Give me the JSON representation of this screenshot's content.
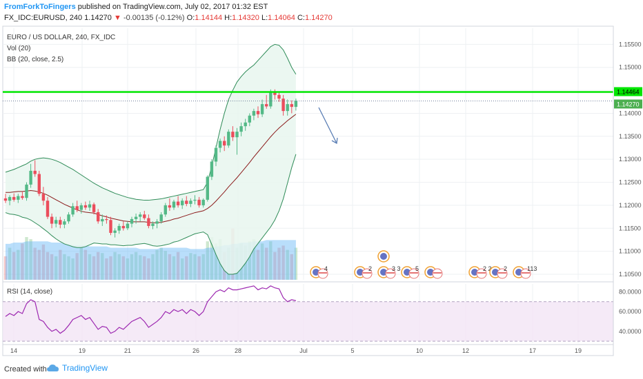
{
  "header": {
    "author": "FromForkToFingers",
    "published": "published on TradingView.com, July 02, 2017 01:32 EST",
    "symbol": "FX_IDC:EURUSD, 240",
    "last": "1.14270",
    "change": "-0.00135 (-0.12%)",
    "o_label": "O:",
    "o_value": "1.14144",
    "h_label": "H:",
    "h_value": "1.14320",
    "l_label": "L:",
    "l_value": "1.14064",
    "c_label": "C:",
    "c_value": "1.14270"
  },
  "chart_data": {
    "type": "candlestick",
    "legend": [
      "EURO / US DOLLAR, 240, FX_IDC",
      "Vol (20)",
      "BB (20, close, 2.5)"
    ],
    "price_axis": {
      "ylim": [
        1.1038,
        1.1585
      ],
      "ticks": [
        "1.15500",
        "1.15000",
        "1.14500",
        "1.14000",
        "1.13500",
        "1.13000",
        "1.12500",
        "1.12000",
        "1.11500",
        "1.11000",
        "1.10500"
      ],
      "tick_values": [
        1.155,
        1.15,
        1.145,
        1.14,
        1.135,
        1.13,
        1.125,
        1.12,
        1.115,
        1.11,
        1.105
      ],
      "level_line": 1.14464,
      "level_label": "1.14464",
      "last_price": 1.1427,
      "last_label": "1.14270"
    },
    "x_axis": {
      "ticks": [
        "14",
        "19",
        "21",
        "26",
        "28",
        "Jul",
        "5",
        "10",
        "12",
        "17",
        "19"
      ]
    },
    "ohlc": [
      [
        1.1215,
        1.1225,
        1.1205,
        1.121
      ],
      [
        1.121,
        1.1222,
        1.12,
        1.1218
      ],
      [
        1.1218,
        1.1226,
        1.1208,
        1.1212
      ],
      [
        1.1212,
        1.1225,
        1.1205,
        1.122
      ],
      [
        1.122,
        1.123,
        1.1212,
        1.1216
      ],
      [
        1.1216,
        1.125,
        1.121,
        1.1245
      ],
      [
        1.1245,
        1.129,
        1.1238,
        1.1275
      ],
      [
        1.1275,
        1.1298,
        1.1262,
        1.1268
      ],
      [
        1.1268,
        1.1275,
        1.122,
        1.1225
      ],
      [
        1.1225,
        1.124,
        1.12,
        1.121
      ],
      [
        1.121,
        1.1218,
        1.117,
        1.1175
      ],
      [
        1.1175,
        1.1182,
        1.115,
        1.116
      ],
      [
        1.116,
        1.1175,
        1.1152,
        1.1168
      ],
      [
        1.1168,
        1.1175,
        1.115,
        1.1158
      ],
      [
        1.1158,
        1.117,
        1.115,
        1.1165
      ],
      [
        1.1165,
        1.1185,
        1.116,
        1.118
      ],
      [
        1.118,
        1.1205,
        1.1175,
        1.1198
      ],
      [
        1.1198,
        1.121,
        1.1185,
        1.119
      ],
      [
        1.119,
        1.1205,
        1.1182,
        1.12
      ],
      [
        1.12,
        1.1208,
        1.119,
        1.1195
      ],
      [
        1.1195,
        1.121,
        1.1188,
        1.1202
      ],
      [
        1.1202,
        1.1206,
        1.118,
        1.1185
      ],
      [
        1.1185,
        1.1192,
        1.116,
        1.1165
      ],
      [
        1.1165,
        1.118,
        1.1155,
        1.117
      ],
      [
        1.117,
        1.1178,
        1.116,
        1.1168
      ],
      [
        1.1168,
        1.1175,
        1.1135,
        1.114
      ],
      [
        1.114,
        1.115,
        1.113,
        1.1145
      ],
      [
        1.1145,
        1.116,
        1.1138,
        1.1155
      ],
      [
        1.1155,
        1.1165,
        1.1145,
        1.115
      ],
      [
        1.115,
        1.1165,
        1.1146,
        1.116
      ],
      [
        1.116,
        1.1175,
        1.1152,
        1.117
      ],
      [
        1.117,
        1.1182,
        1.116,
        1.1175
      ],
      [
        1.1175,
        1.1185,
        1.1165,
        1.118
      ],
      [
        1.118,
        1.1188,
        1.1168,
        1.1172
      ],
      [
        1.1172,
        1.118,
        1.115,
        1.1155
      ],
      [
        1.1155,
        1.1165,
        1.1148,
        1.116
      ],
      [
        1.116,
        1.117,
        1.115,
        1.1165
      ],
      [
        1.1165,
        1.1185,
        1.116,
        1.118
      ],
      [
        1.118,
        1.1205,
        1.1175,
        1.12
      ],
      [
        1.12,
        1.1215,
        1.1188,
        1.1195
      ],
      [
        1.1195,
        1.1212,
        1.119,
        1.1208
      ],
      [
        1.1208,
        1.122,
        1.1195,
        1.12
      ],
      [
        1.12,
        1.1215,
        1.1192,
        1.121
      ],
      [
        1.121,
        1.122,
        1.1198,
        1.1203
      ],
      [
        1.1203,
        1.1215,
        1.1196,
        1.121
      ],
      [
        1.121,
        1.1222,
        1.1202,
        1.1212
      ],
      [
        1.1212,
        1.1218,
        1.1195,
        1.12
      ],
      [
        1.12,
        1.1215,
        1.1195,
        1.1212
      ],
      [
        1.1212,
        1.1265,
        1.1208,
        1.1262
      ],
      [
        1.1262,
        1.13,
        1.1255,
        1.1295
      ],
      [
        1.1295,
        1.133,
        1.1285,
        1.1325
      ],
      [
        1.1325,
        1.1345,
        1.1315,
        1.134
      ],
      [
        1.134,
        1.135,
        1.1318,
        1.133
      ],
      [
        1.133,
        1.1365,
        1.1325,
        1.136
      ],
      [
        1.136,
        1.1372,
        1.134,
        1.1348
      ],
      [
        1.1348,
        1.1368,
        1.131,
        1.136
      ],
      [
        1.136,
        1.138,
        1.135,
        1.1372
      ],
      [
        1.1372,
        1.1388,
        1.1362,
        1.138
      ],
      [
        1.138,
        1.14,
        1.1372,
        1.1395
      ],
      [
        1.1395,
        1.141,
        1.1385,
        1.1405
      ],
      [
        1.1405,
        1.1415,
        1.139,
        1.1398
      ],
      [
        1.1398,
        1.143,
        1.1392,
        1.142
      ],
      [
        1.142,
        1.144,
        1.141,
        1.1415
      ],
      [
        1.1415,
        1.1452,
        1.141,
        1.1445
      ],
      [
        1.1445,
        1.1452,
        1.143,
        1.144
      ],
      [
        1.144,
        1.1448,
        1.1425,
        1.1432
      ],
      [
        1.1432,
        1.144,
        1.1395,
        1.1405
      ],
      [
        1.1405,
        1.143,
        1.1395,
        1.142
      ],
      [
        1.142,
        1.1428,
        1.14,
        1.1414
      ],
      [
        1.1414,
        1.1432,
        1.1406,
        1.1427
      ]
    ],
    "volume": [
      22,
      30,
      26,
      28,
      34,
      40,
      38,
      30,
      28,
      33,
      26,
      24,
      22,
      28,
      24,
      22,
      20,
      25,
      30,
      28,
      24,
      22,
      26,
      25,
      20,
      22,
      26,
      24,
      22,
      20,
      24,
      26,
      23,
      22,
      20,
      24,
      28,
      30,
      27,
      24,
      22,
      26,
      20,
      22,
      25,
      24,
      22,
      24,
      36,
      40,
      34,
      38,
      26,
      30,
      48,
      30,
      34,
      32,
      36,
      38,
      28,
      34,
      30,
      36,
      26,
      30,
      32,
      28,
      24,
      30
    ],
    "vol_ma": [
      28,
      28,
      29,
      29,
      29,
      30,
      30,
      30,
      30,
      30,
      30,
      29,
      29,
      29,
      28,
      28,
      27,
      27,
      27,
      27,
      26,
      26,
      26,
      26,
      26,
      25,
      25,
      25,
      25,
      25,
      25,
      25,
      24,
      24,
      24,
      24,
      24,
      25,
      25,
      25,
      25,
      25,
      25,
      25,
      24,
      24,
      24,
      24,
      25,
      25,
      26,
      26,
      27,
      27,
      28,
      28,
      29,
      29,
      29,
      30,
      30,
      30,
      31,
      31,
      31,
      31,
      31,
      31,
      31,
      31
    ],
    "bb": {
      "mid": [
        1.1228,
        1.1228,
        1.1229,
        1.123,
        1.123,
        1.1231,
        1.1232,
        1.1231,
        1.1229,
        1.1226,
        1.1222,
        1.1217,
        1.1212,
        1.1207,
        1.1202,
        1.1198,
        1.1194,
        1.119,
        1.1187,
        1.1185,
        1.1184,
        1.1183,
        1.118,
        1.1177,
        1.1175,
        1.1172,
        1.117,
        1.1168,
        1.1166,
        1.1165,
        1.1164,
        1.1164,
        1.1164,
        1.1164,
        1.1163,
        1.1162,
        1.1162,
        1.1163,
        1.1165,
        1.1167,
        1.117,
        1.1172,
        1.1175,
        1.1178,
        1.1181,
        1.1184,
        1.1186,
        1.1188,
        1.1193,
        1.12,
        1.1209,
        1.1219,
        1.1229,
        1.124,
        1.125,
        1.126,
        1.1271,
        1.1282,
        1.1293,
        1.1305,
        1.1316,
        1.1327,
        1.1338,
        1.1349,
        1.1359,
        1.1368,
        1.1376,
        1.1384,
        1.1391,
        1.1398
      ],
      "upper": [
        1.1272,
        1.1275,
        1.1278,
        1.1282,
        1.1286,
        1.129,
        1.1296,
        1.13,
        1.1302,
        1.1303,
        1.1302,
        1.13,
        1.1297,
        1.1293,
        1.1288,
        1.1283,
        1.1278,
        1.1272,
        1.1266,
        1.126,
        1.1254,
        1.1248,
        1.1243,
        1.1238,
        1.1234,
        1.123,
        1.1226,
        1.1223,
        1.122,
        1.1217,
        1.1215,
        1.1213,
        1.1212,
        1.1211,
        1.1211,
        1.1212,
        1.1213,
        1.1214,
        1.1216,
        1.1218,
        1.122,
        1.1222,
        1.1224,
        1.1226,
        1.1228,
        1.123,
        1.1232,
        1.1234,
        1.125,
        1.1285,
        1.1325,
        1.1365,
        1.14,
        1.143,
        1.145,
        1.1468,
        1.148,
        1.149,
        1.1498,
        1.1505,
        1.1515,
        1.1525,
        1.1535,
        1.1545,
        1.155,
        1.1548,
        1.1538,
        1.152,
        1.15,
        1.1485
      ],
      "lower": [
        1.1184,
        1.1181,
        1.118,
        1.1178,
        1.1174,
        1.1172,
        1.1168,
        1.1162,
        1.1156,
        1.1149,
        1.1142,
        1.1134,
        1.1127,
        1.1121,
        1.1116,
        1.1113,
        1.111,
        1.1108,
        1.1108,
        1.111,
        1.1114,
        1.1118,
        1.1117,
        1.1116,
        1.1116,
        1.1114,
        1.1114,
        1.1113,
        1.1112,
        1.1113,
        1.1113,
        1.1115,
        1.1116,
        1.1117,
        1.1115,
        1.1112,
        1.1111,
        1.1112,
        1.1114,
        1.1116,
        1.112,
        1.1122,
        1.1126,
        1.113,
        1.1134,
        1.1138,
        1.114,
        1.1142,
        1.1136,
        1.1115,
        1.1093,
        1.1073,
        1.1058,
        1.105,
        1.105,
        1.1052,
        1.1062,
        1.1074,
        1.1088,
        1.1105,
        1.1117,
        1.1129,
        1.1141,
        1.1153,
        1.1168,
        1.1188,
        1.1214,
        1.1248,
        1.1282,
        1.1311
      ]
    },
    "rsi": {
      "label": "RSI (14, close)",
      "ylim": [
        28,
        88
      ],
      "ticks": [
        "80.0000",
        "60.0000",
        "40.0000"
      ],
      "tick_values": [
        80,
        60,
        40
      ],
      "bands": [
        70,
        30
      ],
      "values": [
        55,
        58,
        56,
        60,
        58,
        68,
        72,
        70,
        52,
        50,
        44,
        40,
        42,
        38,
        41,
        46,
        52,
        54,
        56,
        52,
        54,
        48,
        42,
        45,
        44,
        38,
        40,
        44,
        42,
        46,
        50,
        52,
        54,
        50,
        44,
        47,
        50,
        54,
        60,
        58,
        62,
        60,
        62,
        58,
        62,
        60,
        56,
        60,
        70,
        75,
        80,
        82,
        80,
        84,
        82,
        82,
        83,
        84,
        85,
        86,
        82,
        84,
        83,
        86,
        84,
        83,
        74,
        70,
        72,
        71
      ]
    },
    "annotation": "downward arrow drawn after the last candle"
  },
  "footer": {
    "created": "Created with",
    "brand": "TradingView"
  },
  "colors": {
    "up": "#53b987",
    "down": "#eb4d5c",
    "level": "#00e600",
    "bb_band": "#2e8b57",
    "bb_mid": "#8b1a1a",
    "bb_fill": "#e8f6ef",
    "rsi_line": "#9c27b0",
    "rsi_fill": "#f3e5f5",
    "vol_area": "#64b5f6",
    "arrow": "#5b7fb5"
  }
}
